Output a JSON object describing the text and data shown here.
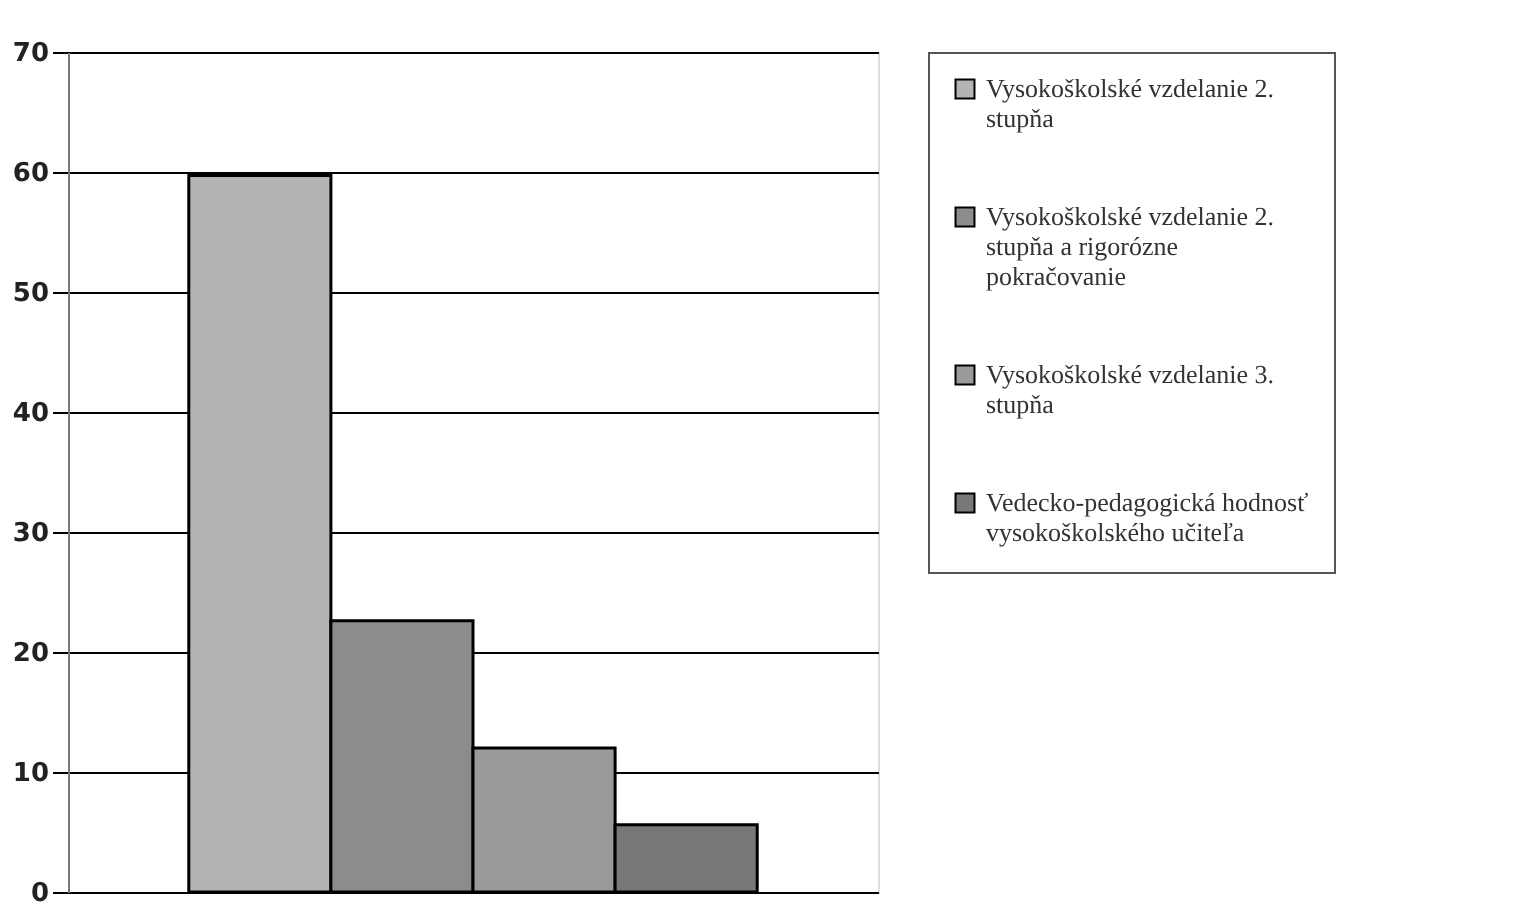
{
  "chart_data": {
    "type": "bar",
    "categories": [
      null
    ],
    "series": [
      {
        "name": "Vysokoškolské vzdelanie 2. stupňa",
        "color": "#b4b4b4",
        "values": [
          59.7
        ]
      },
      {
        "name": "Vysokoškolské vzdelanie 2. stupňa a rigorózne pokračovanie",
        "color": "#8c8c8c",
        "values": [
          22.6
        ]
      },
      {
        "name": "Vysokoškolské vzdelanie 3. stupňa",
        "color": "#9a9a9a",
        "values": [
          12.0
        ]
      },
      {
        "name": "Vedecko-pedagogická hodnosť vysokoškolského učiteľa",
        "color": "#787878",
        "values": [
          5.6
        ]
      }
    ],
    "ylim": [
      0,
      70
    ],
    "yticks": [
      0,
      10,
      20,
      30,
      40,
      50,
      60,
      70
    ],
    "grid": "y",
    "legend": "right",
    "tick_labels": "y"
  }
}
